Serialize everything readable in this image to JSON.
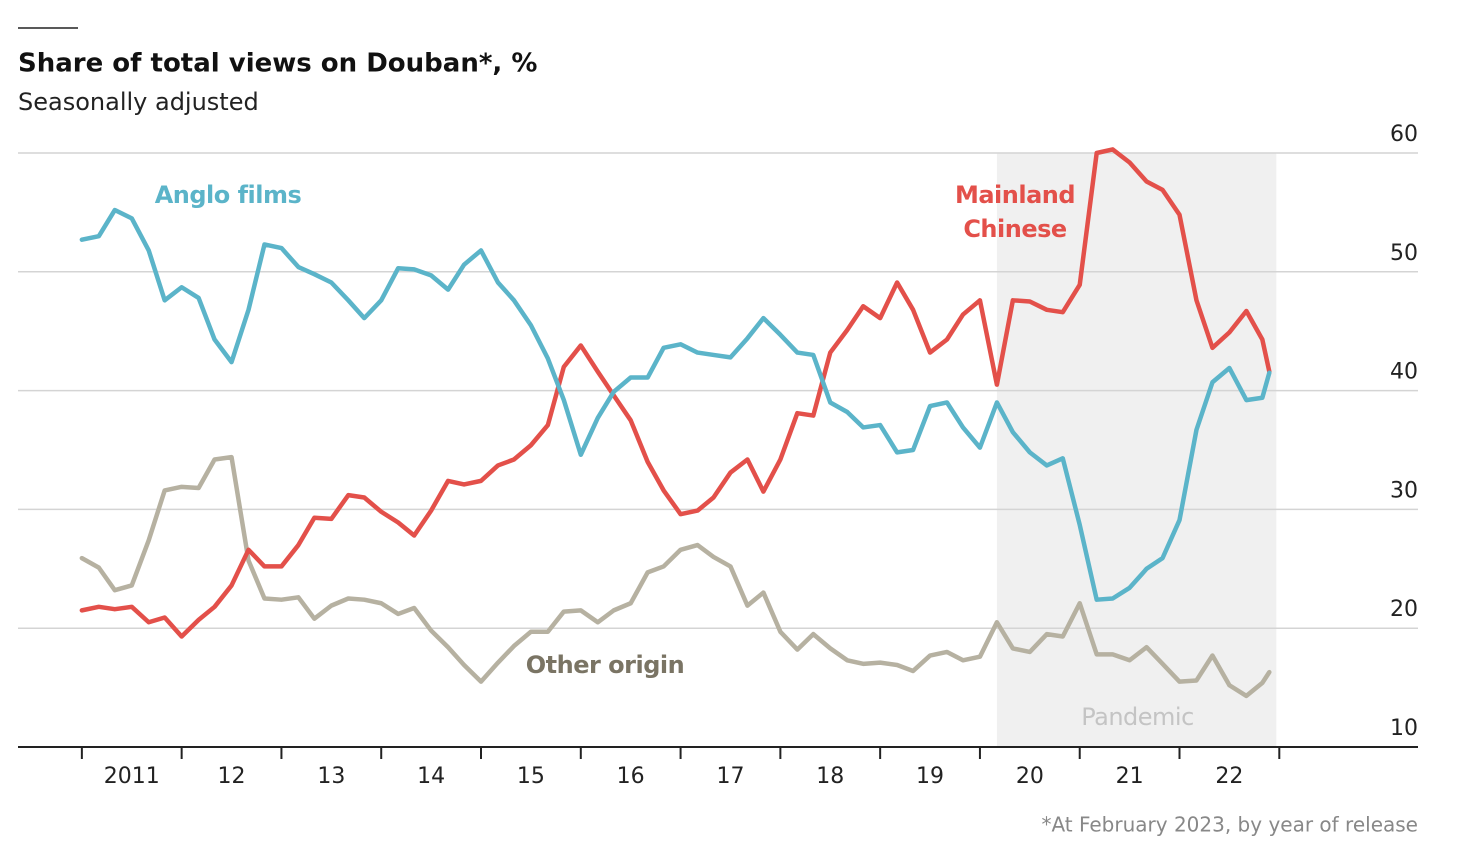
{
  "chart_data": {
    "type": "line",
    "title": "Share of total views on Douban*, %",
    "subtitle": "Seasonally adjusted",
    "footnote": "*At February 2023, by year of release",
    "x": [
      2011,
      2011.17,
      2011.33,
      2011.5,
      2011.67,
      2011.83,
      2012,
      2012.17,
      2012.33,
      2012.5,
      2012.67,
      2012.83,
      2013,
      2013.17,
      2013.33,
      2013.5,
      2013.67,
      2013.83,
      2014,
      2014.17,
      2014.33,
      2014.5,
      2014.67,
      2014.83,
      2015,
      2015.17,
      2015.33,
      2015.5,
      2015.67,
      2015.83,
      2016,
      2016.17,
      2016.33,
      2016.5,
      2016.67,
      2016.83,
      2017,
      2017.17,
      2017.33,
      2017.5,
      2017.67,
      2017.83,
      2018,
      2018.17,
      2018.33,
      2018.5,
      2018.67,
      2018.83,
      2019,
      2019.17,
      2019.33,
      2019.5,
      2019.67,
      2019.83,
      2020,
      2020.17,
      2020.33,
      2020.5,
      2020.67,
      2020.83,
      2021,
      2021.17,
      2021.33,
      2021.5,
      2021.67,
      2021.83,
      2022,
      2022.17,
      2022.33,
      2022.5,
      2022.67,
      2022.83,
      2022.9
    ],
    "series": [
      {
        "name": "Other origin",
        "color": "#b6b1a1",
        "label_color": "#7a7464",
        "values": [
          25.9,
          25.1,
          23.2,
          23.6,
          27.4,
          31.6,
          31.9,
          31.8,
          34.2,
          34.4,
          25.7,
          22.5,
          22.4,
          22.6,
          20.8,
          21.9,
          22.5,
          22.4,
          22.1,
          21.2,
          21.7,
          19.8,
          18.4,
          16.9,
          15.5,
          17.1,
          18.5,
          19.7,
          19.7,
          21.4,
          21.5,
          20.5,
          21.5,
          22.1,
          24.7,
          25.2,
          26.6,
          27.0,
          26.0,
          25.2,
          21.9,
          23.0,
          19.7,
          18.2,
          19.5,
          18.3,
          17.3,
          17.0,
          17.1,
          16.9,
          16.4,
          17.7,
          18.0,
          17.3,
          17.6,
          20.5,
          18.3,
          18.0,
          19.5,
          19.3,
          22.1,
          17.8,
          17.8,
          17.3,
          18.4,
          17.0,
          15.5,
          15.6,
          17.7,
          15.2,
          14.3,
          15.4,
          16.3
        ]
      },
      {
        "name": "Mainland Chinese",
        "color": "#e3504a",
        "label_color": "#e3504a",
        "values": [
          21.5,
          21.8,
          21.6,
          21.8,
          20.5,
          20.9,
          19.3,
          20.7,
          21.8,
          23.6,
          26.6,
          25.2,
          25.2,
          27.0,
          29.3,
          29.2,
          31.2,
          31.0,
          29.8,
          28.9,
          27.8,
          29.9,
          32.4,
          32.1,
          32.4,
          33.7,
          34.2,
          35.4,
          37.1,
          42.0,
          43.8,
          41.6,
          39.6,
          37.5,
          34.0,
          31.6,
          29.6,
          29.9,
          31.0,
          33.1,
          34.2,
          31.5,
          34.2,
          38.1,
          37.9,
          43.2,
          45.1,
          47.1,
          46.1,
          49.1,
          46.8,
          43.2,
          44.3,
          46.4,
          47.6,
          40.5,
          47.6,
          47.5,
          46.8,
          46.6,
          48.9,
          60.0,
          60.3,
          59.2,
          57.6,
          56.9,
          54.8,
          47.6,
          43.6,
          44.9,
          46.7,
          44.3,
          41.6
        ]
      },
      {
        "name": "Anglo films",
        "color": "#5bb4c9",
        "label_color": "#5bb4c9",
        "values": [
          52.7,
          53.0,
          55.2,
          54.5,
          51.8,
          47.6,
          48.7,
          47.8,
          44.3,
          42.4,
          46.8,
          52.3,
          52.0,
          50.4,
          49.8,
          49.1,
          47.6,
          46.1,
          47.6,
          50.3,
          50.2,
          49.7,
          48.5,
          50.6,
          51.8,
          49.1,
          47.6,
          45.5,
          42.7,
          39.2,
          34.6,
          37.7,
          39.9,
          41.1,
          41.1,
          43.6,
          43.9,
          43.2,
          43.0,
          42.8,
          44.4,
          46.1,
          44.7,
          43.2,
          43.0,
          39.0,
          38.2,
          36.9,
          37.1,
          34.8,
          35.0,
          38.7,
          39.0,
          36.9,
          35.2,
          39.0,
          36.5,
          34.8,
          33.7,
          34.3,
          28.7,
          22.4,
          22.5,
          23.4,
          25.0,
          25.9,
          29.1,
          36.7,
          40.7,
          41.9,
          39.2,
          39.4,
          41.5
        ]
      }
    ],
    "shading": {
      "label": "Pandemic",
      "span": [
        2020.17,
        2022.97
      ],
      "color": "#f0f0f0",
      "label_color": "#c4c4c4"
    },
    "xlim": [
      2010.36,
      2024.39
    ],
    "xtick_marks": [
      2011,
      2012,
      2013,
      2014,
      2015,
      2016,
      2017,
      2018,
      2019,
      2020,
      2021,
      2022,
      2023
    ],
    "xticks": [
      {
        "value": 2011.5,
        "label": "2011"
      },
      {
        "value": 2012.5,
        "label": "12"
      },
      {
        "value": 2013.5,
        "label": "13"
      },
      {
        "value": 2014.5,
        "label": "14"
      },
      {
        "value": 2015.5,
        "label": "15"
      },
      {
        "value": 2016.5,
        "label": "16"
      },
      {
        "value": 2017.5,
        "label": "17"
      },
      {
        "value": 2018.5,
        "label": "18"
      },
      {
        "value": 2019.5,
        "label": "19"
      },
      {
        "value": 2020.5,
        "label": "20"
      },
      {
        "value": 2021.5,
        "label": "21"
      },
      {
        "value": 2022.5,
        "label": "22"
      }
    ],
    "ylim": [
      10,
      60
    ],
    "yticks": [
      10,
      20,
      30,
      40,
      50,
      60
    ],
    "grid": true
  }
}
